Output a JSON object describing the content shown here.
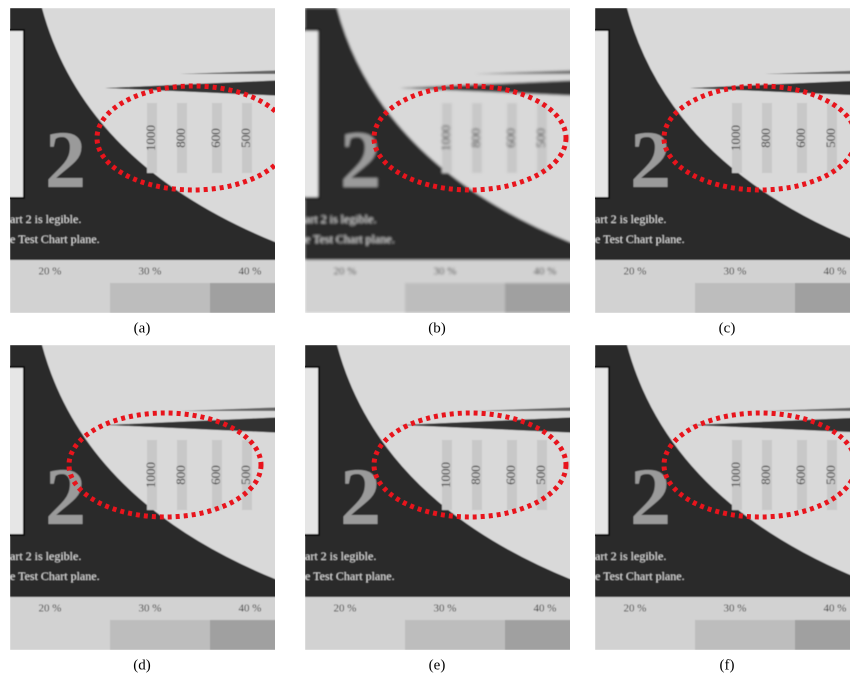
{
  "panels": [
    {
      "caption": "(a)",
      "big_digit": "2",
      "line1": "art 2 is legible.",
      "line2": "e Test Chart plane.",
      "resolutions": [
        "1000",
        "800",
        "600",
        "500"
      ],
      "contrasts": [
        "20 %",
        "30 %",
        "40 %"
      ]
    },
    {
      "caption": "(b)",
      "big_digit": "2",
      "line1": "art 2 is legible.",
      "line2": "e Test Chart plane.",
      "resolutions": [
        "1000",
        "800",
        "600",
        "500"
      ],
      "contrasts": [
        "20 %",
        "30 %",
        "40 %"
      ]
    },
    {
      "caption": "(c)",
      "big_digit": "2",
      "line1": "art 2 is legible.",
      "line2": "e Test Chart plane.",
      "resolutions": [
        "1000",
        "800",
        "600",
        "500"
      ],
      "contrasts": [
        "20 %",
        "30 %",
        "40 %"
      ]
    },
    {
      "caption": "(d)",
      "big_digit": "2",
      "line1": "art 2 is legible.",
      "line2": "e Test Chart plane.",
      "resolutions": [
        "1000",
        "800",
        "600",
        "500"
      ],
      "contrasts": [
        "20 %",
        "30 %",
        "40 %"
      ]
    },
    {
      "caption": "(e)",
      "big_digit": "2",
      "line1": "art 2 is legible.",
      "line2": "e Test Chart plane.",
      "resolutions": [
        "1000",
        "800",
        "600",
        "500"
      ],
      "contrasts": [
        "20 %",
        "30 %",
        "40 %"
      ]
    },
    {
      "caption": "(f)",
      "big_digit": "2",
      "line1": "art 2 is legible.",
      "line2": "e Test Chart plane.",
      "resolutions": [
        "1000",
        "800",
        "600",
        "500"
      ],
      "contrasts": [
        "20 %",
        "30 %",
        "40 %"
      ]
    }
  ]
}
